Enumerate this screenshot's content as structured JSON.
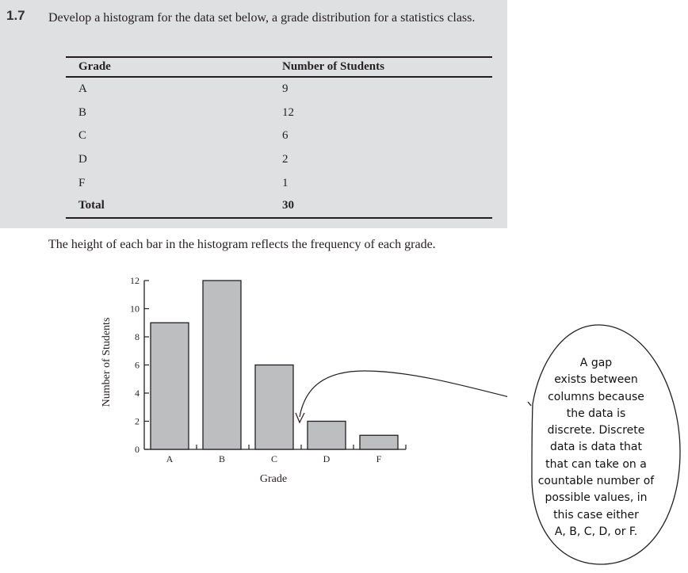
{
  "problem": {
    "number": "1.7",
    "text": "Develop a histogram for the data set below, a grade distribution for a statistics class."
  },
  "table": {
    "headers": [
      "Grade",
      "Number of Students"
    ],
    "rows": [
      [
        "A",
        "9"
      ],
      [
        "B",
        "12"
      ],
      [
        "C",
        "6"
      ],
      [
        "D",
        "2"
      ],
      [
        "F",
        "1"
      ]
    ],
    "total": [
      "Total",
      "30"
    ]
  },
  "caption": "The height of each bar in the histogram reflects the frequency of each grade.",
  "chart_data": {
    "type": "bar",
    "categories": [
      "A",
      "B",
      "C",
      "D",
      "F"
    ],
    "values": [
      9,
      12,
      6,
      2,
      1
    ],
    "xlabel": "Grade",
    "ylabel": "Number of Students",
    "ylim": [
      0,
      12
    ],
    "yticks": [
      0,
      2,
      4,
      6,
      8,
      10,
      12
    ],
    "grid": false,
    "bar_color": "#bcbec0"
  },
  "annotation": {
    "lines": [
      "A gap",
      "exists between",
      "columns because",
      "the data is",
      "discrete. Discrete",
      "data is data that",
      "that can take on a",
      "countable number of",
      "possible values, in",
      "this case either",
      "A, B, C, D, or F."
    ]
  }
}
